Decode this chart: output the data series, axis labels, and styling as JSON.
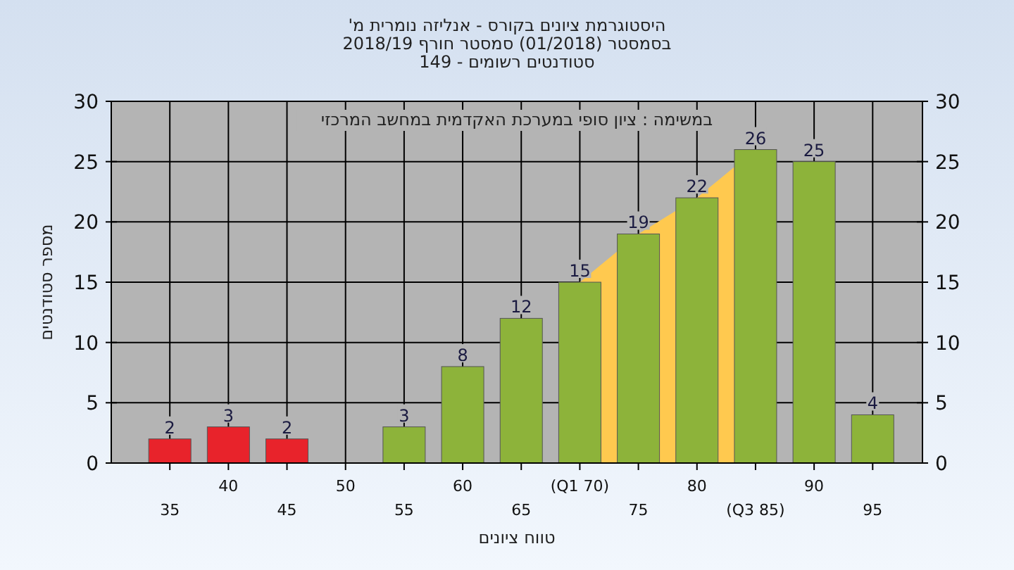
{
  "chart_data": {
    "type": "bar",
    "title": [
      "היסטוגרמת ציונים בקורס - אנליזה נומרית מ'",
      "בסמסטר (01/2018) סמסטר חורף 2018/19",
      "סטודנטים רשומים - 149"
    ],
    "xlabel": "טווח ציונים",
    "ylabel": "מספר סטודנטים",
    "annotations": [
      "במשימה : ציון סופי במערכת האקדמית במחשב המרכזי"
    ],
    "categories": [
      "35",
      "40",
      "45",
      "50",
      "55",
      "60",
      "65",
      "(Q1 70)",
      "75",
      "80",
      "(Q3 85)",
      "90",
      "95"
    ],
    "series": [
      {
        "type": "area",
        "color": "#ffc94f",
        "values": [
          null,
          null,
          null,
          null,
          null,
          null,
          null,
          15,
          19,
          22,
          26,
          null,
          null
        ]
      },
      {
        "colors": [
          "#e8232b",
          "#e8232b",
          "#e8232b",
          "#8db33a",
          "#8db33a",
          "#8db33a",
          "#8db33a",
          "#8db33a",
          "#8db33a",
          "#8db33a",
          "#8db33a",
          "#8db33a",
          "#8db33a"
        ],
        "values": [
          2,
          3,
          2,
          0,
          3,
          8,
          12,
          15,
          19,
          22,
          26,
          25,
          4
        ],
        "value_labels": [
          "2",
          "3",
          "2",
          null,
          "3",
          "8",
          "12",
          "15",
          "19",
          "22",
          "26",
          "25",
          "4"
        ]
      }
    ],
    "ylim": [
      0,
      30
    ],
    "yticks": [
      0,
      5,
      10,
      15,
      20,
      25,
      30
    ],
    "y2lim": [
      0,
      30
    ],
    "y2ticks": [
      0,
      5,
      10,
      15,
      20,
      25,
      30
    ],
    "grid": true
  }
}
